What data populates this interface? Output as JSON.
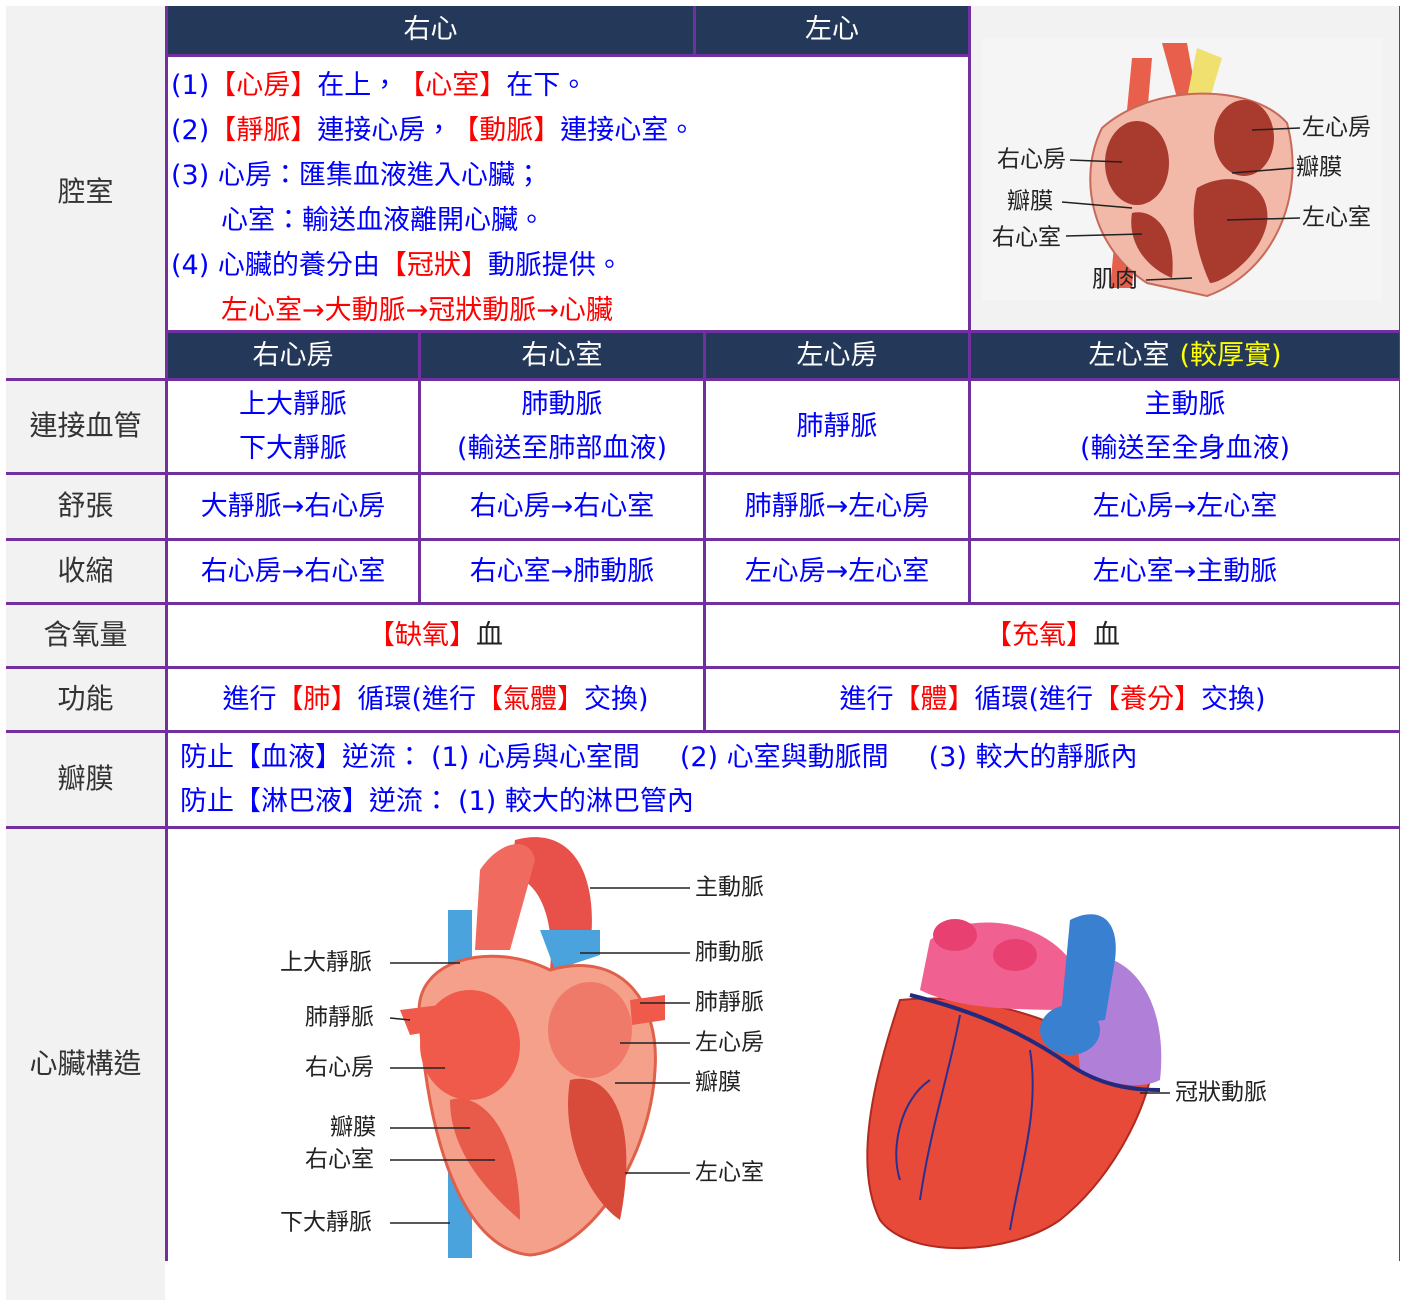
{
  "chambers": {
    "label": "腔室",
    "headers": [
      "右心",
      "左心"
    ],
    "notes": [
      [
        "(1) ",
        {
          "text": "【心房】",
          "color": "#ff0000"
        },
        "在上，",
        {
          "text": "【心室】",
          "color": "#ff0000"
        },
        "在下。"
      ],
      [
        "(2) ",
        {
          "text": "【靜脈】",
          "color": "#ff0000"
        },
        "連接心房，",
        {
          "text": "【動脈】",
          "color": "#ff0000"
        },
        "連接心室。"
      ],
      [
        "(3) 心房：匯集血液進入心臟；"
      ],
      [
        "心室：輸送血液離開心臟。"
      ],
      [
        "(4) 心臟的養分由",
        {
          "text": "【冠狀】",
          "color": "#ff0000"
        },
        "動脈提供。"
      ],
      [
        {
          "text": "左心室→大動脈→冠狀動脈→心臟",
          "color": "#ff0000"
        }
      ]
    ],
    "diagram_labels": [
      "左心房",
      "瓣膜",
      "左心室",
      "右心房",
      "瓣膜",
      "右心室",
      "肌肉"
    ],
    "sub_headers": [
      [
        [
          "右心房"
        ]
      ],
      [
        [
          "右心室"
        ]
      ],
      [
        [
          "左心房"
        ]
      ],
      [
        [
          "左心室",
          {
            "text": "(較厚實)",
            "color": "#ffff00"
          }
        ]
      ]
    ]
  },
  "rows": [
    {
      "label": "連接血管",
      "cells": [
        [
          [
            "上大靜脈"
          ],
          [
            "下大靜脈"
          ]
        ],
        [
          [
            "肺動脈"
          ],
          [
            "(輸送至肺部血液)"
          ]
        ],
        [
          [
            "肺靜脈"
          ]
        ],
        [
          [
            "主動脈"
          ],
          [
            "(輸送至全身血液)"
          ]
        ]
      ]
    },
    {
      "label": "舒張",
      "cells": [
        [
          [
            "大靜脈→右心房"
          ]
        ],
        [
          [
            "右心房→右心室"
          ]
        ],
        [
          [
            "肺靜脈→左心房"
          ]
        ],
        [
          [
            "左心房→左心室"
          ]
        ]
      ]
    },
    {
      "label": "收縮",
      "cells": [
        [
          [
            "右心房→右心室"
          ]
        ],
        [
          [
            "右心室→肺動脈"
          ]
        ],
        [
          [
            "左心房→左心室"
          ]
        ],
        [
          [
            "左心室→主動脈"
          ]
        ]
      ]
    },
    {
      "label": "含氧量",
      "cells": [
        [
          [
            {
              "text": "【缺氧】",
              "color": "#ff0000"
            },
            {
              "text": "血",
              "color": "#222222"
            }
          ]
        ],
        [
          [
            {
              "text": "【充氧】",
              "color": "#ff0000"
            },
            {
              "text": "血",
              "color": "#222222"
            }
          ]
        ]
      ]
    },
    {
      "label": "功能",
      "cells": [
        [
          [
            "進行",
            {
              "text": "【肺】",
              "color": "#ff0000"
            },
            "循環(進行",
            {
              "text": "【氣體】",
              "color": "#ff0000"
            },
            "交換)"
          ]
        ],
        [
          [
            "進行",
            {
              "text": "【體】",
              "color": "#ff0000"
            },
            "循環(進行",
            {
              "text": "【養分】",
              "color": "#ff0000"
            },
            "交換)"
          ]
        ]
      ]
    },
    {
      "label": "瓣膜",
      "cells": [
        [
          [
            "防止【血液】逆流：",
            "(1) 心房與心室間",
            "(2) 心室與動脈間",
            "(3) 較大的靜脈內"
          ],
          [
            "防止【淋巴液】逆流：",
            "(1) 較大的淋巴管內"
          ]
        ]
      ]
    }
  ],
  "structure": {
    "label": "心臟構造",
    "interior_labels_right": [
      "主動脈",
      "肺動脈",
      "肺靜脈",
      "左心房",
      "瓣膜",
      "左心室"
    ],
    "interior_labels_left": [
      "上大靜脈",
      "肺靜脈",
      "右心房",
      "瓣膜",
      "右心室",
      "下大靜脈"
    ],
    "exterior_label": "冠狀動脈"
  }
}
